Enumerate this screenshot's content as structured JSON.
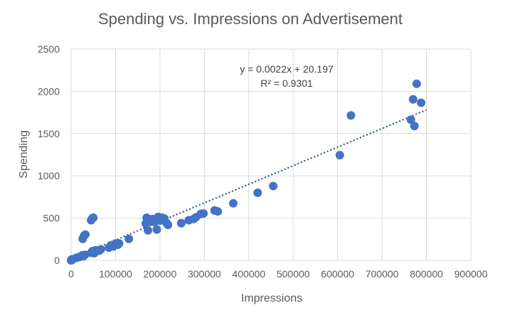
{
  "chart_data": {
    "type": "scatter",
    "title": "Spending vs. Impressions on Advertisement",
    "xlabel": "Impressions",
    "ylabel": "Spending",
    "xlim": [
      0,
      900000
    ],
    "ylim": [
      0,
      2500
    ],
    "xticks": [
      0,
      100000,
      200000,
      300000,
      400000,
      500000,
      600000,
      700000,
      800000,
      900000
    ],
    "yticks": [
      0,
      500,
      1000,
      1500,
      2000,
      2500
    ],
    "grid": true,
    "color": "#4472c4",
    "trendline": {
      "slope": 0.0022,
      "intercept": 20.197,
      "x_range": [
        0,
        800000
      ],
      "equation_label": "y = 0.0022x + 20.197",
      "r2_label": "R² = 0.9301",
      "style": "dotted",
      "color": "#2f5597"
    },
    "points": [
      {
        "x": 0,
        "y": 0
      },
      {
        "x": 1000,
        "y": 10
      },
      {
        "x": 2000,
        "y": 5
      },
      {
        "x": 3000,
        "y": 15
      },
      {
        "x": 12000,
        "y": 30
      },
      {
        "x": 18000,
        "y": 40
      },
      {
        "x": 22000,
        "y": 45
      },
      {
        "x": 25000,
        "y": 60
      },
      {
        "x": 28000,
        "y": 50
      },
      {
        "x": 31000,
        "y": 65
      },
      {
        "x": 26000,
        "y": 255
      },
      {
        "x": 29000,
        "y": 290
      },
      {
        "x": 32000,
        "y": 305
      },
      {
        "x": 45000,
        "y": 475
      },
      {
        "x": 48000,
        "y": 500
      },
      {
        "x": 50000,
        "y": 505
      },
      {
        "x": 45000,
        "y": 90
      },
      {
        "x": 48000,
        "y": 110
      },
      {
        "x": 52000,
        "y": 85
      },
      {
        "x": 55000,
        "y": 120
      },
      {
        "x": 63000,
        "y": 115
      },
      {
        "x": 67000,
        "y": 130
      },
      {
        "x": 85000,
        "y": 150
      },
      {
        "x": 90000,
        "y": 180
      },
      {
        "x": 95000,
        "y": 165
      },
      {
        "x": 100000,
        "y": 200
      },
      {
        "x": 105000,
        "y": 185
      },
      {
        "x": 108000,
        "y": 200
      },
      {
        "x": 130000,
        "y": 255
      },
      {
        "x": 168000,
        "y": 435
      },
      {
        "x": 170000,
        "y": 505
      },
      {
        "x": 173000,
        "y": 355
      },
      {
        "x": 180000,
        "y": 460
      },
      {
        "x": 183000,
        "y": 490
      },
      {
        "x": 188000,
        "y": 455
      },
      {
        "x": 193000,
        "y": 365
      },
      {
        "x": 196000,
        "y": 515
      },
      {
        "x": 200000,
        "y": 470
      },
      {
        "x": 205000,
        "y": 505
      },
      {
        "x": 210000,
        "y": 495
      },
      {
        "x": 215000,
        "y": 440
      },
      {
        "x": 218000,
        "y": 420
      },
      {
        "x": 248000,
        "y": 440
      },
      {
        "x": 265000,
        "y": 475
      },
      {
        "x": 276000,
        "y": 490
      },
      {
        "x": 281000,
        "y": 510
      },
      {
        "x": 292000,
        "y": 550
      },
      {
        "x": 298000,
        "y": 555
      },
      {
        "x": 323000,
        "y": 590
      },
      {
        "x": 330000,
        "y": 580
      },
      {
        "x": 365000,
        "y": 675
      },
      {
        "x": 420000,
        "y": 800
      },
      {
        "x": 455000,
        "y": 880
      },
      {
        "x": 605000,
        "y": 1245
      },
      {
        "x": 630000,
        "y": 1715
      },
      {
        "x": 765000,
        "y": 1665
      },
      {
        "x": 770000,
        "y": 1905
      },
      {
        "x": 773000,
        "y": 1590
      },
      {
        "x": 778000,
        "y": 2090
      },
      {
        "x": 788000,
        "y": 1865
      }
    ]
  }
}
